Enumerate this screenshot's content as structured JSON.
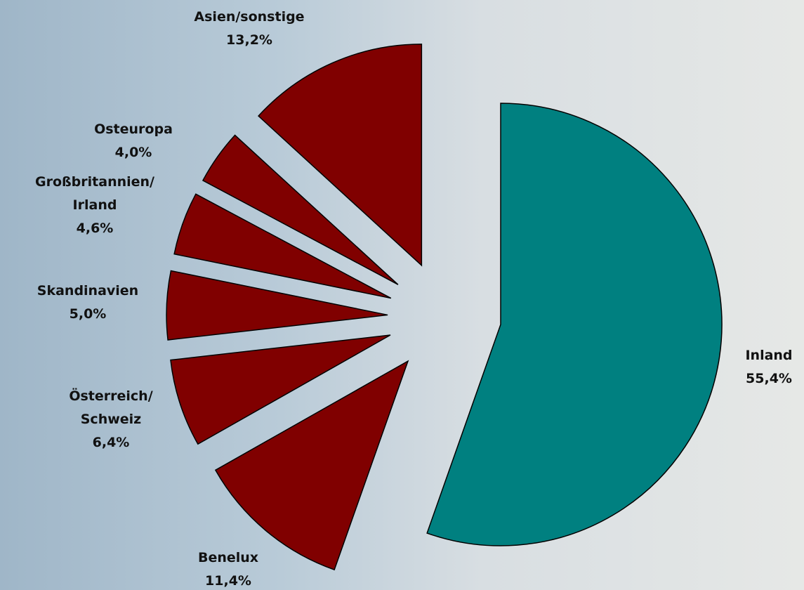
{
  "chart_data": {
    "type": "pie",
    "categories": [
      "Inland",
      "Benelux",
      "Österreich/\nSchweiz",
      "Skandinavien",
      "Großbritannien/\nIrland",
      "Osteuropa",
      "Asien/sonstige"
    ],
    "values": [
      55.4,
      11.4,
      6.4,
      5.0,
      4.6,
      4.0,
      13.2
    ],
    "value_labels": [
      "55,4%",
      "11,4%",
      "6,4%",
      "5,0%",
      "4,6%",
      "4,0%",
      "13,2%"
    ],
    "colors": [
      "#008080",
      "#800000",
      "#800000",
      "#800000",
      "#800000",
      "#800000",
      "#800000"
    ]
  }
}
